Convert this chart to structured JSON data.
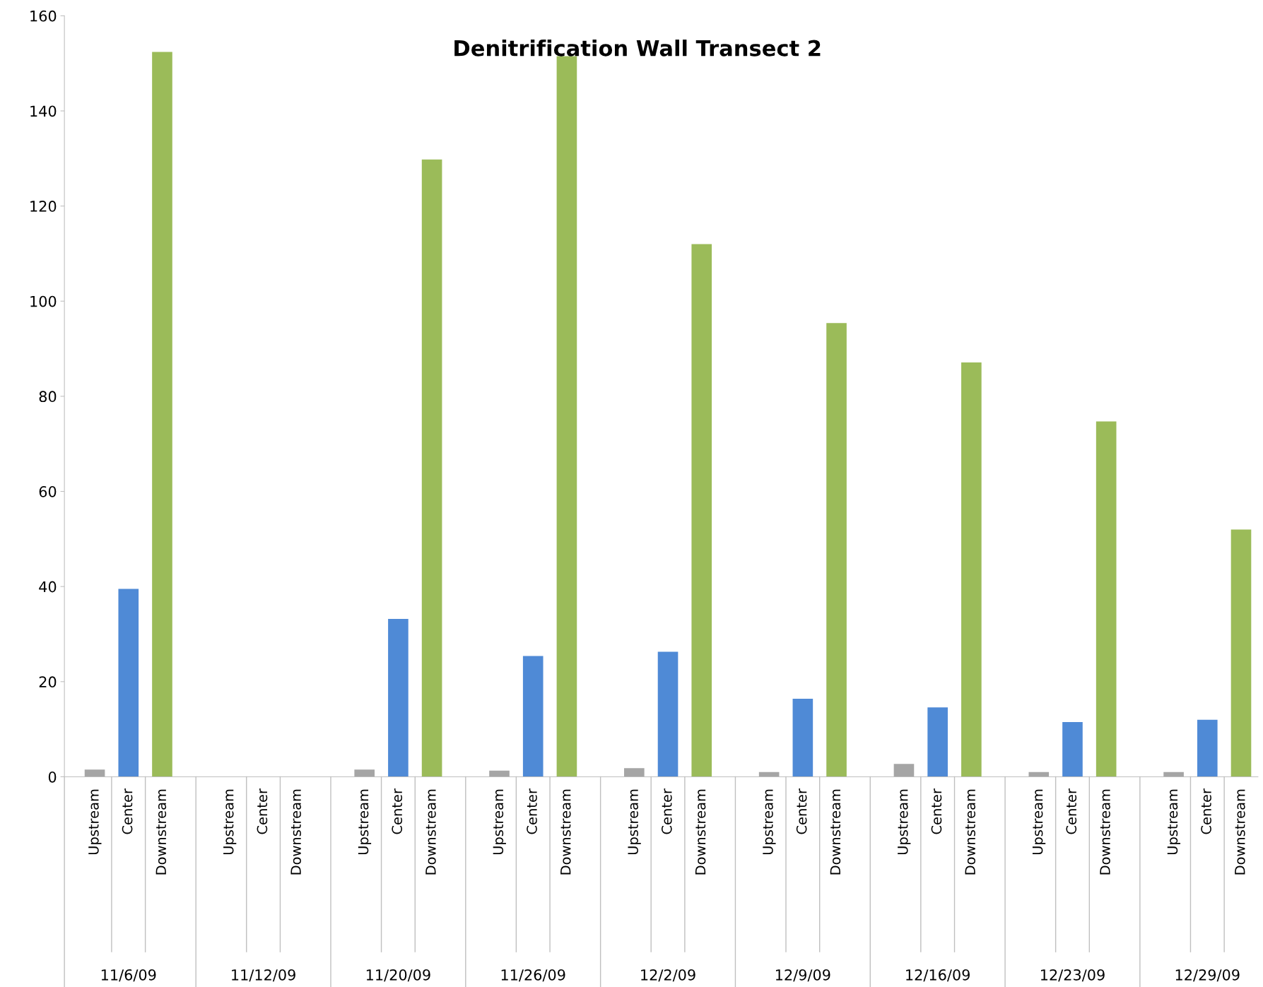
{
  "chart_data": {
    "type": "bar",
    "title": "Denitrification Wall Transect 2",
    "categories": [
      "Upstream",
      "Center",
      "Downstream",
      "Upstream",
      "Center",
      "Downstream",
      "Upstream",
      "Center",
      "Downstream",
      "Upstream",
      "Center",
      "Downstream",
      "Upstream",
      "Center",
      "Downstream",
      "Upstream",
      "Center",
      "Downstream",
      "Upstream",
      "Center",
      "Downstream",
      "Upstream",
      "Center",
      "Downstream",
      "Upstream",
      "Center",
      "Downstream"
    ],
    "values": [
      1.5,
      39.5,
      152.4,
      null,
      null,
      null,
      1.5,
      33.2,
      129.8,
      1.3,
      25.4,
      151.5,
      1.8,
      26.3,
      112.0,
      1.0,
      16.4,
      95.4,
      2.7,
      14.6,
      87.1,
      1.0,
      11.5,
      74.7,
      1.0,
      12.0,
      52.0
    ],
    "colors": [
      "#a5a5a5",
      "#4f8ad6",
      "#9bbb59",
      "#a5a5a5",
      "#4f8ad6",
      "#9bbb59",
      "#a5a5a5",
      "#4f8ad6",
      "#9bbb59",
      "#a5a5a5",
      "#4f8ad6",
      "#9bbb59",
      "#a5a5a5",
      "#4f8ad6",
      "#9bbb59",
      "#a5a5a5",
      "#4f8ad6",
      "#9bbb59",
      "#a5a5a5",
      "#4f8ad6",
      "#9bbb59",
      "#a5a5a5",
      "#4f8ad6",
      "#9bbb59",
      "#a5a5a5",
      "#4f8ad6",
      "#9bbb59"
    ],
    "annotations": [
      "11/6/09",
      "11/12/09",
      "11/20/09",
      "11/26/09",
      "12/2/09",
      "12/9/09",
      "12/16/09",
      "12/23/09",
      "12/29/09"
    ],
    "ylim": [
      0,
      160
    ],
    "yticks": [
      0,
      20,
      40,
      60,
      80,
      100,
      120,
      140,
      160
    ],
    "grid": false
  }
}
